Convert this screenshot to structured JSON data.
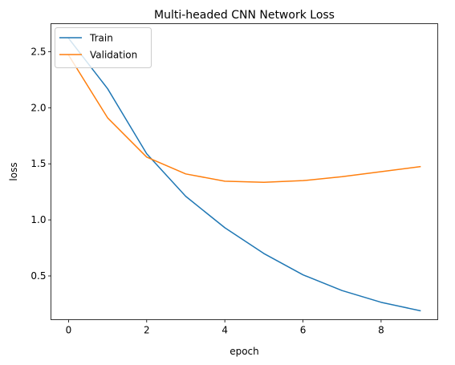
{
  "chart_data": {
    "type": "line",
    "title": "Multi-headed CNN Network Loss",
    "xlabel": "epoch",
    "ylabel": "loss",
    "x": [
      0,
      1,
      2,
      3,
      4,
      5,
      6,
      7,
      8,
      9
    ],
    "xlim": [
      -0.45,
      9.45
    ],
    "ylim": [
      0.11,
      2.75
    ],
    "xticks": [
      0,
      2,
      4,
      6,
      8
    ],
    "yticks": [
      0.5,
      1.0,
      1.5,
      2.0,
      2.5
    ],
    "xtick_labels": [
      "0",
      "2",
      "4",
      "6",
      "8"
    ],
    "ytick_labels": [
      "0.5",
      "1.0",
      "1.5",
      "2.0",
      "2.5"
    ],
    "grid": false,
    "legend_position": "top-left",
    "series": [
      {
        "name": "Train",
        "color": "#1f77b4",
        "values": [
          2.62,
          2.17,
          1.59,
          1.21,
          0.93,
          0.7,
          0.51,
          0.37,
          0.265,
          0.19
        ]
      },
      {
        "name": "Validation",
        "color": "#ff7f0e",
        "values": [
          2.47,
          1.91,
          1.56,
          1.41,
          1.345,
          1.335,
          1.35,
          1.385,
          1.43,
          1.475
        ]
      }
    ]
  }
}
